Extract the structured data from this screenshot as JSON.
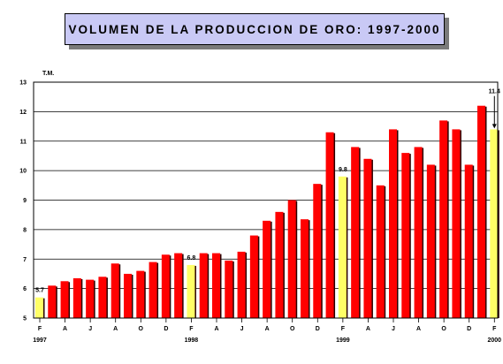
{
  "chart_data": {
    "type": "bar",
    "title": "VOLUMEN  DE LA PRODUCCION DE ORO: 1997-2000",
    "ylabel": "T.M.",
    "ylim": [
      5,
      13
    ],
    "yticks": [
      "5",
      "6",
      "7",
      "8",
      "9",
      "10",
      "11",
      "12",
      "13"
    ],
    "grid": true,
    "month_ticks": [
      "F",
      "A",
      "J",
      "A",
      "O",
      "D",
      "F",
      "A",
      "J",
      "A",
      "O",
      "D",
      "F",
      "A",
      "J",
      "A",
      "O",
      "D",
      "F"
    ],
    "year_ticks": [
      {
        "label": "1997",
        "at_month": 0
      },
      {
        "label": "1998",
        "at_month": 12
      },
      {
        "label": "1999",
        "at_month": 24
      },
      {
        "label": "2000",
        "at_month": 36
      }
    ],
    "values": [
      5.7,
      6.1,
      6.25,
      6.35,
      6.3,
      6.4,
      6.85,
      6.5,
      6.6,
      6.9,
      7.15,
      7.2,
      6.8,
      7.2,
      7.2,
      6.95,
      7.25,
      7.8,
      8.3,
      8.6,
      9.0,
      8.35,
      9.55,
      11.3,
      9.8,
      10.8,
      10.4,
      9.5,
      11.4,
      10.6,
      10.8,
      10.2,
      11.7,
      11.4,
      10.2,
      12.2,
      11.4
    ],
    "highlight_indices": [
      0,
      12,
      24,
      36
    ],
    "colors": {
      "regular": "#ff0000",
      "highlight": "#ffff66"
    },
    "annotations": [
      {
        "text": "5.7",
        "index": 0
      },
      {
        "text": "6.8",
        "index": 12
      },
      {
        "text": "9.8",
        "index": 24
      },
      {
        "text": "11.4",
        "index": 36,
        "arrow": true
      }
    ]
  }
}
